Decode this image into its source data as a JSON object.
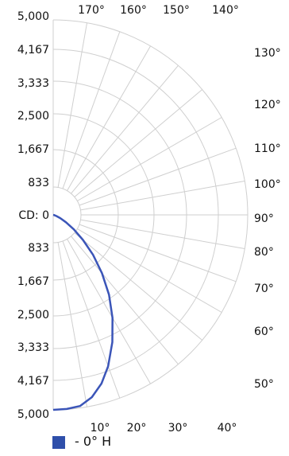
{
  "chart_data": {
    "type": "polar-line",
    "y_axis_prefix": "CD:",
    "radial_ticks": [
      "0",
      "833",
      "1,667",
      "2,500",
      "3,333",
      "4,167",
      "5,000"
    ],
    "rmax": 5000,
    "angle_labels_top": [
      "170°",
      "160°",
      "150°",
      "140°"
    ],
    "angle_labels_right": [
      "130°",
      "120°",
      "110°",
      "100°",
      "90°",
      "80°",
      "70°",
      "60°",
      "50°"
    ],
    "angle_labels_bottom": [
      "10°",
      "20°",
      "30°",
      "40°"
    ],
    "grid": true,
    "legend": {
      "position": "bottom-left",
      "label": "- 0° H"
    },
    "series": [
      {
        "name": "- 0° H",
        "color": "#3b55b8",
        "points": [
          {
            "angle": 0,
            "cd": 5000
          },
          {
            "angle": 4,
            "cd": 4990
          },
          {
            "angle": 8,
            "cd": 4950
          },
          {
            "angle": 12,
            "cd": 4780
          },
          {
            "angle": 16,
            "cd": 4500
          },
          {
            "angle": 20,
            "cd": 4130
          },
          {
            "angle": 25,
            "cd": 3600
          },
          {
            "angle": 30,
            "cd": 3050
          },
          {
            "angle": 35,
            "cd": 2500
          },
          {
            "angle": 40,
            "cd": 1950
          },
          {
            "angle": 45,
            "cd": 1450
          },
          {
            "angle": 50,
            "cd": 1000
          },
          {
            "angle": 55,
            "cd": 650
          },
          {
            "angle": 60,
            "cd": 380
          },
          {
            "angle": 65,
            "cd": 200
          },
          {
            "angle": 70,
            "cd": 90
          },
          {
            "angle": 80,
            "cd": 20
          },
          {
            "angle": 90,
            "cd": 0
          }
        ]
      }
    ]
  },
  "legend": {
    "label": "- 0° H",
    "color": "#2f4faa"
  }
}
